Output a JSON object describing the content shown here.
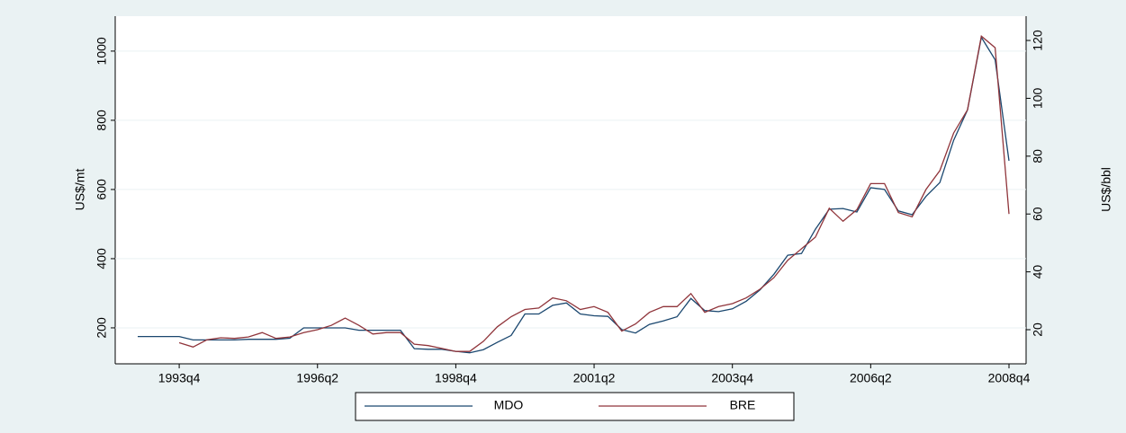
{
  "chart_data": {
    "type": "line",
    "categories": [
      null,
      null,
      null,
      "1993q4",
      null,
      null,
      null,
      null,
      null,
      null,
      null,
      null,
      null,
      "1996q2",
      null,
      null,
      null,
      null,
      null,
      null,
      null,
      null,
      null,
      "1998q4",
      null,
      null,
      null,
      null,
      null,
      null,
      null,
      null,
      null,
      "2001q2",
      null,
      null,
      null,
      null,
      null,
      null,
      null,
      null,
      null,
      "2003q4",
      null,
      null,
      null,
      null,
      null,
      null,
      null,
      null,
      null,
      "2006q2",
      null,
      null,
      null,
      null,
      null,
      null,
      null,
      null,
      null,
      "2008q4"
    ],
    "ylabel": "US$/mt",
    "y2label": "US$/bbl",
    "ylim": [
      96,
      1101
    ],
    "yticks": [
      200,
      400,
      600,
      800,
      1000
    ],
    "y2lim": [
      8.2,
      128.4
    ],
    "y2ticks": [
      20,
      40,
      60,
      80,
      100,
      120
    ],
    "grid": true,
    "legend": "bottom",
    "series": [
      {
        "name": "MDO",
        "color": "#1a476f",
        "axis": "y",
        "values": [
          175,
          175,
          175,
          175,
          165,
          165,
          165,
          165,
          167,
          167,
          167,
          170,
          200,
          200,
          200,
          200,
          193,
          193,
          193,
          193,
          140,
          138,
          138,
          132,
          128,
          137,
          158,
          178,
          240,
          240,
          265,
          272,
          240,
          235,
          233,
          195,
          185,
          210,
          220,
          232,
          285,
          250,
          247,
          255,
          277,
          310,
          355,
          410,
          415,
          485,
          543,
          545,
          535,
          605,
          600,
          538,
          527,
          580,
          620,
          742,
          830,
          1040,
          975,
          683
        ]
      },
      {
        "name": "BRE",
        "color": "#90353b",
        "axis": "y2",
        "values": [
          null,
          null,
          null,
          15.5,
          14,
          16.5,
          17.2,
          17,
          17.5,
          19,
          17,
          17.5,
          19,
          20,
          21.5,
          24,
          21.5,
          18.5,
          19,
          19,
          15,
          14.5,
          13.5,
          12.5,
          12.5,
          16,
          21,
          24.5,
          27,
          27.5,
          31,
          30,
          27,
          28,
          26,
          19.5,
          22,
          26,
          28,
          28,
          32.5,
          26,
          28,
          29,
          31,
          34,
          38,
          44,
          48,
          52,
          62,
          57.5,
          61.5,
          70.5,
          70.5,
          60.5,
          59,
          68.5,
          75,
          88,
          96,
          121.5,
          117.5,
          60
        ]
      }
    ]
  }
}
